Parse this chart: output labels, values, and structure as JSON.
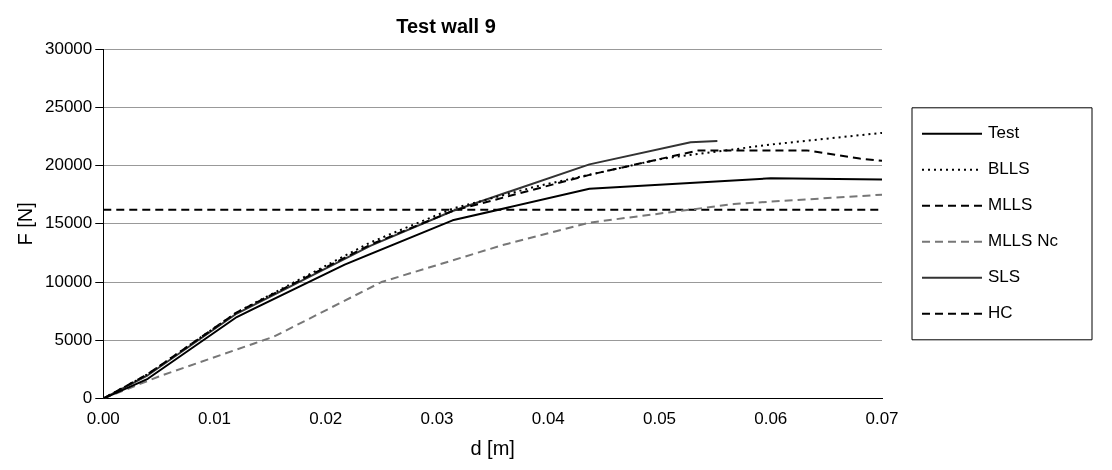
{
  "chart_data": {
    "type": "line",
    "title": "Test wall 9",
    "xlabel": "d [m]",
    "ylabel": "F [N]",
    "xlim": [
      0,
      0.07
    ],
    "xticks": [
      {
        "value": 0,
        "label": "0.00"
      },
      {
        "value": 0.01,
        "label": "0.01"
      },
      {
        "value": 0.02,
        "label": "0.02"
      },
      {
        "value": 0.03,
        "label": "0.03"
      },
      {
        "value": 0.04,
        "label": "0.04"
      },
      {
        "value": 0.05,
        "label": "0.05"
      },
      {
        "value": 0.06,
        "label": "0.06"
      },
      {
        "value": 0.07,
        "label": "0.07"
      }
    ],
    "ylim": [
      0,
      30000
    ],
    "yticks": [
      0,
      5000,
      10000,
      15000,
      20000,
      25000,
      30000
    ],
    "grid": "y",
    "legend": "right",
    "marker": "none",
    "series": [
      {
        "name": "Test",
        "color": "#000000",
        "line_style": "solid",
        "x": [
          0,
          0.004,
          0.012,
          0.0217,
          0.0314,
          0.0437,
          0.06,
          0.07
        ],
        "values": [
          0,
          1700,
          7000,
          11500,
          15300,
          18000,
          18900,
          18800
        ]
      },
      {
        "name": "BLLS",
        "color": "#000000",
        "line_style": "dotted",
        "x": [
          0,
          0.004,
          0.012,
          0.024,
          0.0314,
          0.0389,
          0.0503,
          0.06,
          0.07
        ],
        "values": [
          0,
          2100,
          7400,
          13400,
          16300,
          18200,
          20600,
          21800,
          22800
        ]
      },
      {
        "name": "MLLS",
        "color": "#000000",
        "line_style": "dashed",
        "x": [
          0,
          0.004,
          0.012,
          0.024,
          0.0314,
          0.0437,
          0.0535,
          0.0632,
          0.068,
          0.07
        ],
        "values": [
          0,
          2100,
          7400,
          13200,
          16100,
          19200,
          21300,
          21300,
          20600,
          20400
        ]
      },
      {
        "name": "MLLS Nc",
        "color": "#777777",
        "line_style": "dashed",
        "x": [
          0,
          0.005,
          0.0153,
          0.025,
          0.036,
          0.0437,
          0.0567,
          0.07
        ],
        "values": [
          0,
          1900,
          5300,
          10000,
          13200,
          15100,
          16700,
          17500
        ]
      },
      {
        "name": "SLS",
        "color": "#333333",
        "line_style": "solid",
        "x": [
          0,
          0.004,
          0.012,
          0.024,
          0.0314,
          0.0437,
          0.0528,
          0.0552
        ],
        "values": [
          0,
          2000,
          7300,
          13100,
          16100,
          20100,
          22000,
          22100
        ]
      },
      {
        "name": "HC",
        "color": "#000000",
        "line_style": "dashed",
        "x": [
          0,
          0.07
        ],
        "values": [
          16200,
          16200
        ]
      }
    ]
  }
}
